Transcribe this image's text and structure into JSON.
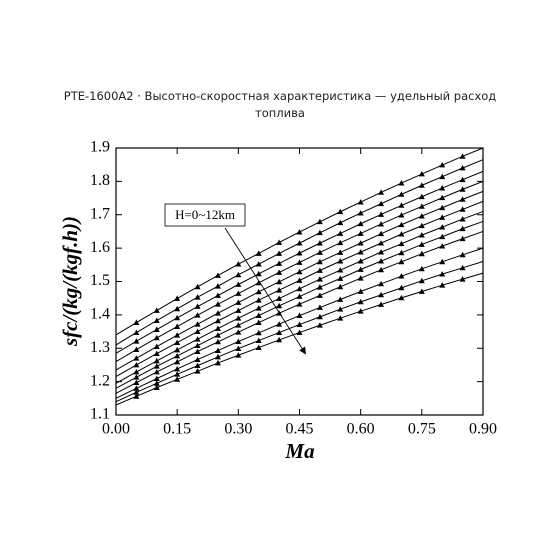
{
  "chart_data": {
    "type": "line",
    "title": "PTE-1600A2 · Высотно-скоростная характеристика — удельный расход топлива",
    "x_label": "Ma",
    "y_label": "sfc/(kg/(kgf.h))",
    "annotation": "H=0~12km",
    "x": [
      0,
      0.05,
      0.1,
      0.15,
      0.2,
      0.25,
      0.3,
      0.35,
      0.4,
      0.45,
      0.5,
      0.55,
      0.6,
      0.65,
      0.7,
      0.75,
      0.8,
      0.85,
      0.9
    ],
    "xlim": [
      0,
      0.9
    ],
    "xticks": [
      {
        "value": 0,
        "label": "0.00"
      },
      {
        "value": 0.15,
        "label": "0.15"
      },
      {
        "value": 0.3,
        "label": "0.30"
      },
      {
        "value": 0.45,
        "label": "0.45"
      },
      {
        "value": 0.6,
        "label": "0.60"
      },
      {
        "value": 0.75,
        "label": "0.75"
      },
      {
        "value": 0.9,
        "label": "0.90"
      }
    ],
    "ylim": [
      1.1,
      1.9
    ],
    "yticks": [
      1.1,
      1.2,
      1.3,
      1.4,
      1.5,
      1.6,
      1.7,
      1.8,
      1.9
    ],
    "grid": false,
    "series": [
      {
        "color": "#000000",
        "values": [
          1.34,
          1.377,
          1.413,
          1.449,
          1.484,
          1.518,
          1.552,
          1.584,
          1.617,
          1.648,
          1.679,
          1.709,
          1.738,
          1.767,
          1.795,
          1.822,
          1.849,
          1.875,
          1.9
        ]
      },
      {
        "color": "#000000",
        "values": [
          1.31,
          1.347,
          1.383,
          1.418,
          1.453,
          1.486,
          1.52,
          1.552,
          1.584,
          1.615,
          1.646,
          1.676,
          1.705,
          1.733,
          1.761,
          1.788,
          1.814,
          1.84,
          1.865
        ]
      },
      {
        "color": "#000000",
        "values": [
          1.285,
          1.321,
          1.356,
          1.391,
          1.425,
          1.458,
          1.491,
          1.523,
          1.554,
          1.585,
          1.615,
          1.644,
          1.673,
          1.701,
          1.728,
          1.754,
          1.78,
          1.805,
          1.83
        ]
      },
      {
        "color": "#000000",
        "values": [
          1.26,
          1.296,
          1.331,
          1.365,
          1.399,
          1.432,
          1.464,
          1.496,
          1.527,
          1.557,
          1.587,
          1.616,
          1.644,
          1.672,
          1.699,
          1.725,
          1.751,
          1.776,
          1.8
        ]
      },
      {
        "color": "#000000",
        "values": [
          1.235,
          1.27,
          1.305,
          1.339,
          1.372,
          1.405,
          1.437,
          1.469,
          1.499,
          1.529,
          1.559,
          1.587,
          1.615,
          1.643,
          1.67,
          1.696,
          1.721,
          1.746,
          1.77
        ]
      },
      {
        "color": "#000000",
        "values": [
          1.215,
          1.25,
          1.284,
          1.317,
          1.35,
          1.382,
          1.413,
          1.444,
          1.474,
          1.503,
          1.533,
          1.561,
          1.588,
          1.615,
          1.642,
          1.667,
          1.692,
          1.716,
          1.74
        ]
      },
      {
        "color": "#000000",
        "values": [
          1.195,
          1.229,
          1.262,
          1.295,
          1.327,
          1.359,
          1.39,
          1.42,
          1.449,
          1.478,
          1.507,
          1.534,
          1.561,
          1.588,
          1.613,
          1.639,
          1.663,
          1.687,
          1.71
        ]
      },
      {
        "color": "#000000",
        "values": [
          1.18,
          1.213,
          1.246,
          1.277,
          1.308,
          1.339,
          1.369,
          1.398,
          1.427,
          1.455,
          1.483,
          1.509,
          1.536,
          1.561,
          1.586,
          1.611,
          1.634,
          1.658,
          1.68
        ]
      },
      {
        "color": "#000000",
        "values": [
          1.165,
          1.197,
          1.229,
          1.259,
          1.29,
          1.319,
          1.348,
          1.377,
          1.405,
          1.432,
          1.458,
          1.484,
          1.51,
          1.535,
          1.559,
          1.583,
          1.606,
          1.628,
          1.65
        ]
      },
      {
        "color": "#000000",
        "values": [
          1.15,
          1.18,
          1.209,
          1.238,
          1.266,
          1.293,
          1.32,
          1.346,
          1.372,
          1.398,
          1.422,
          1.446,
          1.47,
          1.493,
          1.516,
          1.538,
          1.559,
          1.58,
          1.6
        ]
      },
      {
        "color": "#000000",
        "values": [
          1.14,
          1.168,
          1.195,
          1.222,
          1.248,
          1.274,
          1.299,
          1.323,
          1.347,
          1.371,
          1.394,
          1.417,
          1.439,
          1.46,
          1.481,
          1.502,
          1.522,
          1.541,
          1.56
        ]
      },
      {
        "color": "#000000",
        "values": [
          1.13,
          1.156,
          1.182,
          1.207,
          1.231,
          1.256,
          1.279,
          1.302,
          1.325,
          1.347,
          1.369,
          1.39,
          1.411,
          1.431,
          1.451,
          1.47,
          1.489,
          1.507,
          1.525
        ]
      }
    ]
  }
}
